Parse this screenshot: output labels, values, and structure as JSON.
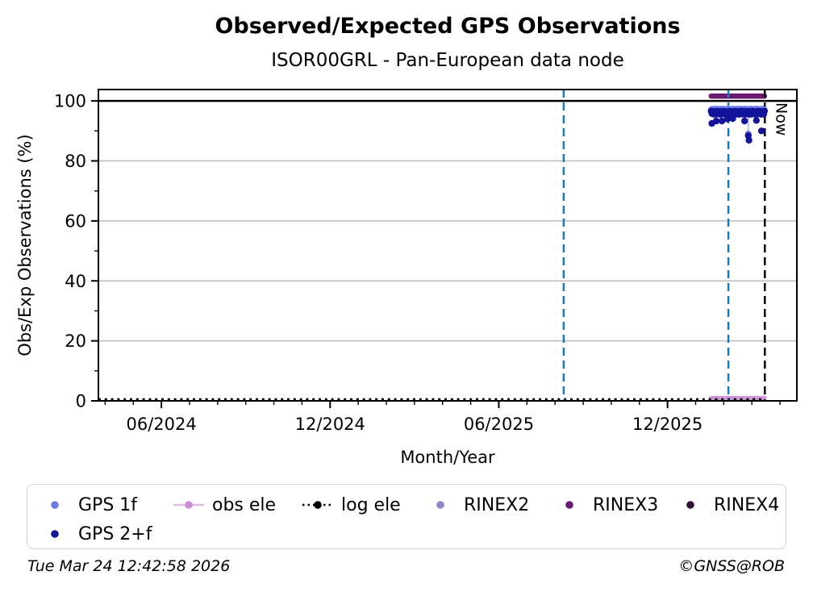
{
  "chart_data": {
    "type": "scatter",
    "title": "Observed/Expected GPS Observations",
    "subtitle": "ISOR00GRL - Pan-European data node",
    "xlabel": "Month/Year",
    "ylabel": "Obs/Exp Observations (%)",
    "xlim": [
      2024.23,
      2026.3
    ],
    "ylim": [
      0,
      103.8
    ],
    "x_ticks": [
      {
        "value": 2024.4167,
        "label": "06/2024"
      },
      {
        "value": 2024.9167,
        "label": "12/2024"
      },
      {
        "value": 2025.4167,
        "label": "06/2025"
      },
      {
        "value": 2025.9167,
        "label": "12/2025"
      }
    ],
    "x_minor_tick_interval_months": 1,
    "y_ticks": [
      0,
      20,
      40,
      60,
      80,
      100
    ],
    "y_minor_ticks": [
      10,
      30,
      50,
      70,
      90
    ],
    "grid": {
      "horizontal_at": [
        20,
        40,
        60,
        80
      ],
      "color": "#bcbcbc",
      "vertical": false
    },
    "reference_lines": [
      {
        "name": "hundred-percent-line",
        "type": "hline",
        "y": 100,
        "color": "#000000",
        "style": "solid",
        "width": 2.5
      },
      {
        "name": "event-line-1",
        "type": "vline",
        "x": 2025.609,
        "color": "#1f77b4",
        "style": "dashed",
        "width": 2.5
      },
      {
        "name": "event-line-2",
        "type": "vline",
        "x": 2026.097,
        "color": "#1f77b4",
        "style": "dashed",
        "width": 2.5
      },
      {
        "name": "now-line",
        "type": "vline",
        "x": 2026.205,
        "color": "#000000",
        "style": "dashed",
        "width": 2.5,
        "label": "Now"
      }
    ],
    "series": [
      {
        "name": "RINEX3",
        "kind": "line",
        "color": "#6b1a72",
        "width": 6.5,
        "y": 101.6,
        "x_start": 2026.046,
        "x_end": 2026.204
      },
      {
        "name": "RINEX2",
        "kind": "legend-only",
        "color": "#8d86c9"
      },
      {
        "name": "RINEX4",
        "kind": "legend-only",
        "color": "#2f1133"
      },
      {
        "name": "obs ele",
        "kind": "line",
        "color": "#cd97d6",
        "width": 5.5,
        "y": 0.9,
        "x_start": 2026.046,
        "x_end": 2026.204
      },
      {
        "name": "log ele",
        "kind": "dotted-line",
        "color": "#000000",
        "width": 3.2,
        "y": 0.45,
        "x_start": 2024.23,
        "x_end": 2026.205
      },
      {
        "name": "GPS 1f",
        "kind": "scatter-band",
        "color": "#6d7be8",
        "radius": 4,
        "band": {
          "x_start": 2026.046,
          "x_end": 2026.204,
          "y_center": 96.95,
          "y_jitter": 0.4,
          "points": 70
        },
        "dropline": {
          "x": 2026.156,
          "y_from": 96.3,
          "y_to": 89.0,
          "color": "#b9c0f2"
        },
        "outliers": [
          [
            2026.156,
            89.0
          ]
        ]
      },
      {
        "name": "GPS 2+f",
        "kind": "scatter-band",
        "color": "#14149a",
        "radius": 4.2,
        "band": {
          "x_start": 2026.046,
          "x_end": 2026.204,
          "y_center": 96.05,
          "y_jitter": 0.55,
          "points": 70
        },
        "outliers": [
          [
            2026.048,
            92.5
          ],
          [
            2026.061,
            93.3
          ],
          [
            2026.078,
            93.3
          ],
          [
            2026.094,
            94.0
          ],
          [
            2026.11,
            94.1
          ],
          [
            2026.145,
            93.3
          ],
          [
            2026.156,
            88.4
          ],
          [
            2026.158,
            86.9
          ],
          [
            2026.18,
            93.5
          ],
          [
            2026.195,
            90.0
          ]
        ]
      }
    ]
  },
  "legend": {
    "items": [
      {
        "label": "GPS 1f",
        "marker": "dot",
        "color": "#6d7be8",
        "row": 0,
        "col": 0
      },
      {
        "label": "obs ele",
        "marker": "line-dot",
        "color": "#c98fd2",
        "line_color": "#ddbbe4",
        "row": 0,
        "col": 1
      },
      {
        "label": "log ele",
        "marker": "dotted-dot",
        "color": "#000000",
        "row": 0,
        "col": 2
      },
      {
        "label": "RINEX2",
        "marker": "dot",
        "color": "#8d86c9",
        "row": 0,
        "col": 3
      },
      {
        "label": "RINEX3",
        "marker": "dot",
        "color": "#6b1a72",
        "row": 0,
        "col": 4
      },
      {
        "label": "RINEX4",
        "marker": "dot",
        "color": "#2f1133",
        "row": 0,
        "col": 5
      },
      {
        "label": "GPS 2+f",
        "marker": "dot",
        "color": "#14149a",
        "row": 1,
        "col": 0
      }
    ]
  },
  "annotations": {
    "now_label": "Now"
  },
  "footer": {
    "timestamp": "Tue Mar 24 12:42:58 2026",
    "copyright": "©GNSS@ROB"
  }
}
